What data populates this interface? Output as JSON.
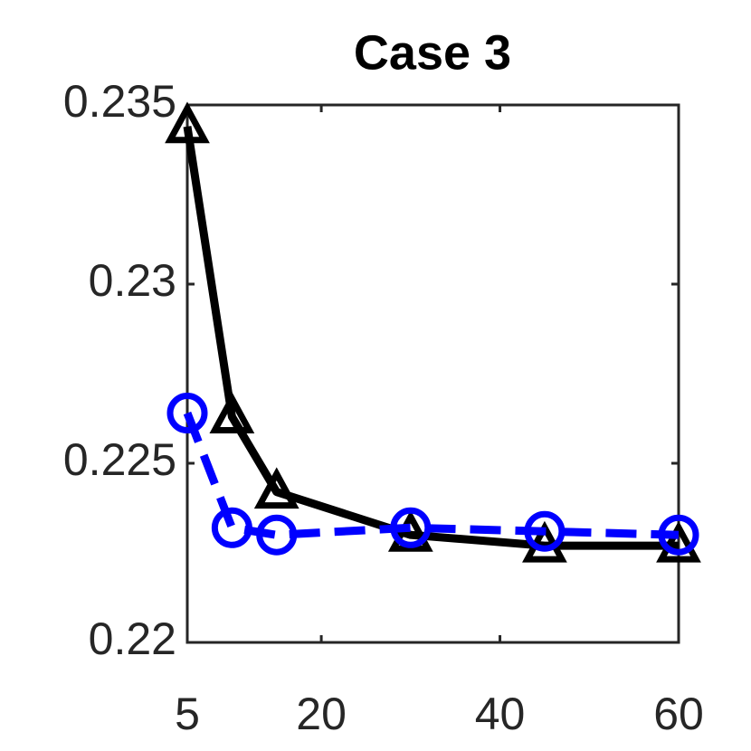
{
  "chart_data": {
    "type": "line",
    "title": "Case 3",
    "x": [
      5,
      10,
      15,
      30,
      45,
      60
    ],
    "series": [
      {
        "color": "#000000",
        "marker": "triangle",
        "linestyle": "solid",
        "values": [
          0.2344,
          0.2263,
          0.2242,
          0.223,
          0.2227,
          0.2227
        ]
      },
      {
        "color": "#0000ff",
        "marker": "circle",
        "linestyle": "dashed",
        "values": [
          0.2264,
          0.2232,
          0.223,
          0.2232,
          0.2231,
          0.223
        ]
      }
    ],
    "xlim": [
      5,
      60
    ],
    "xticks": [
      5,
      20,
      40,
      60
    ],
    "ylim": [
      0.22,
      0.235
    ],
    "yticks": [
      0.22,
      0.225,
      0.23,
      0.235
    ]
  }
}
